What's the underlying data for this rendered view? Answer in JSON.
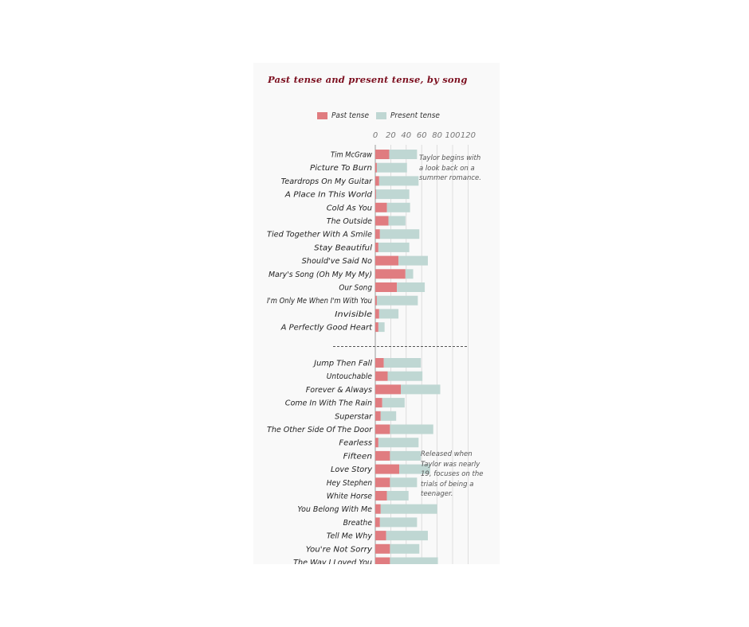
{
  "colors": {
    "past": "#e07c80",
    "present": "#bfd7d3",
    "title": "#7d1020",
    "grid": "#d7d7d7",
    "axis": "#9a9a9a"
  },
  "chart_data": {
    "type": "bar",
    "stacked": true,
    "orientation": "horizontal",
    "title": "Past tense and present tense, by song",
    "legend": [
      "Past tense",
      "Present tense"
    ],
    "legend_position": "top",
    "x_ticks": [
      "0",
      "20",
      "40",
      "60",
      "80",
      "100",
      "120"
    ],
    "xlim": [
      0,
      120
    ],
    "grid": true,
    "groups": [
      {
        "categories": [
          "Tim McGraw",
          "Picture To Burn",
          "Teardrops On My Guitar",
          "A Place In This World",
          "Cold As You",
          "The Outside",
          "Tied Together With A Smile",
          "Stay Beautiful",
          "Should've Said No",
          "Mary's Song (Oh My My My)",
          "Our Song",
          "I'm Only Me When I'm With You",
          "Invisible",
          "A Perfectly Good Heart"
        ],
        "series": [
          {
            "name": "Past tense",
            "values": [
              18,
              2,
              5,
              1,
              15,
              17,
              6,
              4,
              30,
              39,
              28,
              2,
              5,
              4
            ]
          },
          {
            "name": "Present tense",
            "values": [
              36,
              39,
              51,
              43,
              30,
              22,
              51,
              40,
              38,
              10,
              36,
              53,
              25,
              8
            ]
          }
        ]
      },
      {
        "categories": [
          "Jump Then Fall",
          "Untouchable",
          "Forever & Always",
          "Come In With The Rain",
          "Superstar",
          "The Other Side Of The Door",
          "Fearless",
          "Fifteen",
          "Love Story",
          "Hey Stephen",
          "White Horse",
          "You Belong With Me",
          "Breathe",
          "Tell Me Why",
          "You're Not Sorry",
          "The Way I Loved You"
        ],
        "series": [
          {
            "name": "Past tense",
            "values": [
              11,
              16,
              33,
              9,
              7,
              19,
              4,
              19,
              31,
              19,
              15,
              7,
              6,
              14,
              19,
              19
            ]
          },
          {
            "name": "Present tense",
            "values": [
              48,
              45,
              51,
              29,
              20,
              56,
              52,
              40,
              40,
              35,
              28,
              73,
              48,
              54,
              38,
              62
            ]
          }
        ]
      }
    ],
    "annotations": [
      "Taylor begins with a look back on a summer romance.",
      "Released when Taylor was nearly 19, focuses on the trials of being a teenager."
    ]
  }
}
